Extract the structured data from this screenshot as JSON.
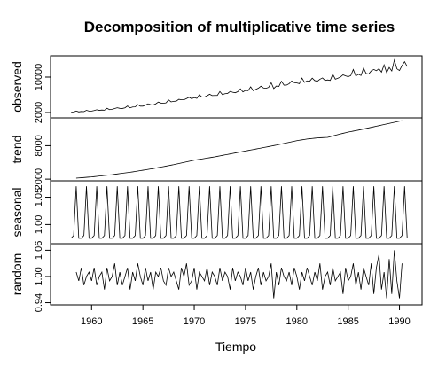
{
  "chart_data": {
    "type": "line",
    "title": "Decomposition of multiplicative time series",
    "xlabel": "Tiempo",
    "xlim": [
      1956.0,
      1992.2
    ],
    "xticks": [
      1960,
      1965,
      1970,
      1975,
      1980,
      1985,
      1990
    ],
    "x": [
      1958,
      1958.25,
      1958.5,
      1958.75,
      1959,
      1959.25,
      1959.5,
      1959.75,
      1960,
      1960.25,
      1960.5,
      1960.75,
      1961,
      1961.25,
      1961.5,
      1961.75,
      1962,
      1962.25,
      1962.5,
      1962.75,
      1963,
      1963.25,
      1963.5,
      1963.75,
      1964,
      1964.25,
      1964.5,
      1964.75,
      1965,
      1965.25,
      1965.5,
      1965.75,
      1966,
      1966.25,
      1966.5,
      1966.75,
      1967,
      1967.25,
      1967.5,
      1967.75,
      1968,
      1968.25,
      1968.5,
      1968.75,
      1969,
      1969.25,
      1969.5,
      1969.75,
      1970,
      1970.25,
      1970.5,
      1970.75,
      1971,
      1971.25,
      1971.5,
      1971.75,
      1972,
      1972.25,
      1972.5,
      1972.75,
      1973,
      1973.25,
      1973.5,
      1973.75,
      1974,
      1974.25,
      1974.5,
      1974.75,
      1975,
      1975.25,
      1975.5,
      1975.75,
      1976,
      1976.25,
      1976.5,
      1976.75,
      1977,
      1977.25,
      1977.5,
      1977.75,
      1978,
      1978.25,
      1978.5,
      1978.75,
      1979,
      1979.25,
      1979.5,
      1979.75,
      1980,
      1980.25,
      1980.5,
      1980.75,
      1981,
      1981.25,
      1981.5,
      1981.75,
      1982,
      1982.25,
      1982.5,
      1982.75,
      1983,
      1983.25,
      1983.5,
      1983.75,
      1984,
      1984.25,
      1984.5,
      1984.75,
      1985,
      1985.25,
      1985.5,
      1985.75,
      1986,
      1986.25,
      1986.5,
      1986.75,
      1987,
      1987.25,
      1987.5,
      1987.75,
      1988,
      1988.25,
      1988.5,
      1988.75,
      1989,
      1989.25,
      1989.5,
      1989.75,
      1990,
      1990.25,
      1990.5,
      1990.75
    ],
    "series": [
      {
        "name": "observed",
        "color": "#000000",
        "ylim": [
          800,
          14800
        ],
        "yticks": [
          2000,
          10000
        ],
        "values": [
          2050,
          2100,
          2350,
          2140,
          2240,
          2200,
          2490,
          2330,
          2320,
          2450,
          2620,
          2490,
          2560,
          2520,
          2950,
          2650,
          2730,
          2890,
          3070,
          2940,
          2910,
          3050,
          3470,
          3060,
          3250,
          3270,
          3800,
          3440,
          3440,
          3670,
          3970,
          3770,
          3690,
          3950,
          4360,
          4140,
          4100,
          4170,
          4830,
          4400,
          4530,
          4560,
          4980,
          4870,
          4880,
          5150,
          5450,
          5120,
          5370,
          5200,
          6000,
          5480,
          5500,
          5770,
          6130,
          5830,
          5850,
          5850,
          6740,
          6050,
          6250,
          6310,
          6770,
          6580,
          6470,
          6720,
          7360,
          6650,
          7010,
          6930,
          7810,
          6920,
          7220,
          7490,
          7940,
          7550,
          7480,
          7680,
          8730,
          7420,
          7980,
          7880,
          9060,
          8190,
          8200,
          8510,
          9120,
          8750,
          8680,
          8530,
          9780,
          8810,
          9150,
          9070,
          9750,
          9210,
          9070,
          9510,
          9810,
          9240,
          9360,
          9240,
          10640,
          9530,
          9750,
          10010,
          10500,
          10280,
          10090,
          10330,
          11710,
          10240,
          10640,
          10360,
          12010,
          10820,
          10700,
          11410,
          11710,
          11440,
          11880,
          11120,
          12750,
          11020,
          12170,
          11380,
          13840,
          11870,
          11490,
          12620,
          13480,
          12380
        ]
      },
      {
        "name": "trend",
        "color": "#000000",
        "ylim": [
          1700,
          13000
        ],
        "yticks": [
          2000,
          8000
        ],
        "values": [
          null,
          null,
          2175,
          2213,
          2250,
          2288,
          2325,
          2363,
          2400,
          2450,
          2500,
          2550,
          2600,
          2650,
          2700,
          2750,
          2800,
          2863,
          2925,
          2988,
          3050,
          3113,
          3175,
          3238,
          3300,
          3375,
          3450,
          3525,
          3600,
          3675,
          3750,
          3825,
          3900,
          3988,
          4075,
          4163,
          4250,
          4338,
          4425,
          4513,
          4600,
          4700,
          4800,
          4900,
          5000,
          5100,
          5200,
          5300,
          5400,
          5475,
          5550,
          5625,
          5700,
          5775,
          5850,
          5925,
          6000,
          6088,
          6175,
          6263,
          6350,
          6438,
          6525,
          6613,
          6700,
          6788,
          6875,
          6963,
          7050,
          7138,
          7225,
          7313,
          7400,
          7488,
          7575,
          7663,
          7750,
          7838,
          7925,
          8013,
          8100,
          8200,
          8300,
          8400,
          8500,
          8600,
          8700,
          8800,
          8900,
          8975,
          9050,
          9125,
          9200,
          9250,
          9300,
          9350,
          9400,
          9425,
          9450,
          9475,
          9500,
          9625,
          9750,
          9875,
          10000,
          10113,
          10225,
          10338,
          10450,
          10538,
          10625,
          10713,
          10800,
          10900,
          11000,
          11100,
          11200,
          11300,
          11400,
          11500,
          11600,
          11700,
          11800,
          11900,
          12000,
          12100,
          12200,
          12300,
          12400,
          12500,
          null,
          null
        ]
      },
      {
        "name": "seasonal",
        "color": "#000000",
        "ylim": [
          0.965,
          1.08
        ],
        "yticks": [
          {
            "value": 1,
            "label": "1.00"
          },
          1.05
        ],
        "values": [
          0.975,
          0.98,
          1.07,
          0.975,
          0.975,
          0.98,
          1.07,
          0.975,
          0.975,
          0.98,
          1.07,
          0.975,
          0.975,
          0.98,
          1.07,
          0.975,
          0.975,
          0.98,
          1.07,
          0.975,
          0.975,
          0.98,
          1.07,
          0.975,
          0.975,
          0.98,
          1.07,
          0.975,
          0.975,
          0.98,
          1.07,
          0.975,
          0.975,
          0.98,
          1.07,
          0.975,
          0.975,
          0.98,
          1.07,
          0.975,
          0.975,
          0.98,
          1.07,
          0.975,
          0.975,
          0.98,
          1.07,
          0.975,
          0.975,
          0.98,
          1.07,
          0.975,
          0.975,
          0.98,
          1.07,
          0.975,
          0.975,
          0.98,
          1.07,
          0.975,
          0.975,
          0.98,
          1.07,
          0.975,
          0.975,
          0.98,
          1.07,
          0.975,
          0.975,
          0.98,
          1.07,
          0.975,
          0.975,
          0.98,
          1.07,
          0.975,
          0.975,
          0.98,
          1.07,
          0.975,
          0.975,
          0.98,
          1.07,
          0.975,
          0.975,
          0.98,
          1.07,
          0.975,
          0.975,
          0.98,
          1.07,
          0.975,
          0.975,
          0.98,
          1.07,
          0.975,
          0.975,
          0.98,
          1.07,
          0.975,
          0.975,
          0.98,
          1.07,
          0.975,
          0.975,
          0.98,
          1.07,
          0.975,
          0.975,
          0.98,
          1.07,
          0.975,
          0.975,
          0.98,
          1.07,
          0.975,
          0.975,
          0.98,
          1.07,
          0.975,
          0.975,
          0.98,
          1.07,
          0.975,
          0.975,
          0.98,
          1.07,
          0.975,
          0.975,
          0.98,
          1.07,
          0.975
        ]
      },
      {
        "name": "random",
        "color": "#000000",
        "ylim": [
          0.935,
          1.075
        ],
        "yticks": [
          0.94,
          {
            "value": 1,
            "label": "1.00"
          },
          1.06
        ],
        "values": [
          null,
          null,
          1.01,
          0.99,
          1.02,
          0.98,
          1.0,
          1.01,
          0.99,
          1.02,
          0.98,
          1.0,
          1.01,
          0.97,
          1.02,
          0.99,
          1.0,
          1.03,
          0.98,
          1.01,
          0.98,
          1.0,
          1.02,
          0.97,
          1.01,
          0.99,
          1.03,
          1.0,
          0.98,
          1.02,
          0.99,
          1.01,
          0.97,
          1.01,
          1.0,
          1.02,
          0.99,
          0.98,
          1.02,
          1.0,
          1.01,
          0.99,
          0.97,
          1.02,
          1.0,
          1.03,
          0.98,
          0.99,
          1.02,
          0.97,
          1.01,
          1.0,
          0.99,
          1.02,
          0.98,
          1.01,
          1.0,
          0.98,
          1.02,
          0.99,
          1.01,
          1.0,
          0.97,
          1.02,
          0.99,
          1.01,
          1.0,
          0.98,
          1.02,
          0.99,
          1.01,
          0.97,
          1.0,
          1.02,
          0.98,
          1.01,
          0.99,
          1.0,
          1.03,
          0.95,
          1.01,
          0.98,
          1.02,
          1.0,
          0.99,
          1.01,
          0.98,
          1.02,
          1.0,
          0.97,
          1.01,
          0.99,
          1.02,
          1.0,
          0.98,
          1.01,
          0.99,
          1.03,
          0.97,
          1.0,
          1.01,
          0.98,
          1.02,
          0.99,
          1.0,
          1.01,
          0.96,
          1.02,
          0.99,
          1.0,
          1.03,
          0.98,
          1.01,
          0.97,
          1.02,
          1.0,
          0.98,
          1.03,
          0.96,
          1.02,
          1.05,
          0.97,
          1.01,
          0.95,
          1.04,
          0.96,
          1.06,
          0.99,
          0.95,
          1.03,
          null,
          null
        ]
      }
    ]
  }
}
